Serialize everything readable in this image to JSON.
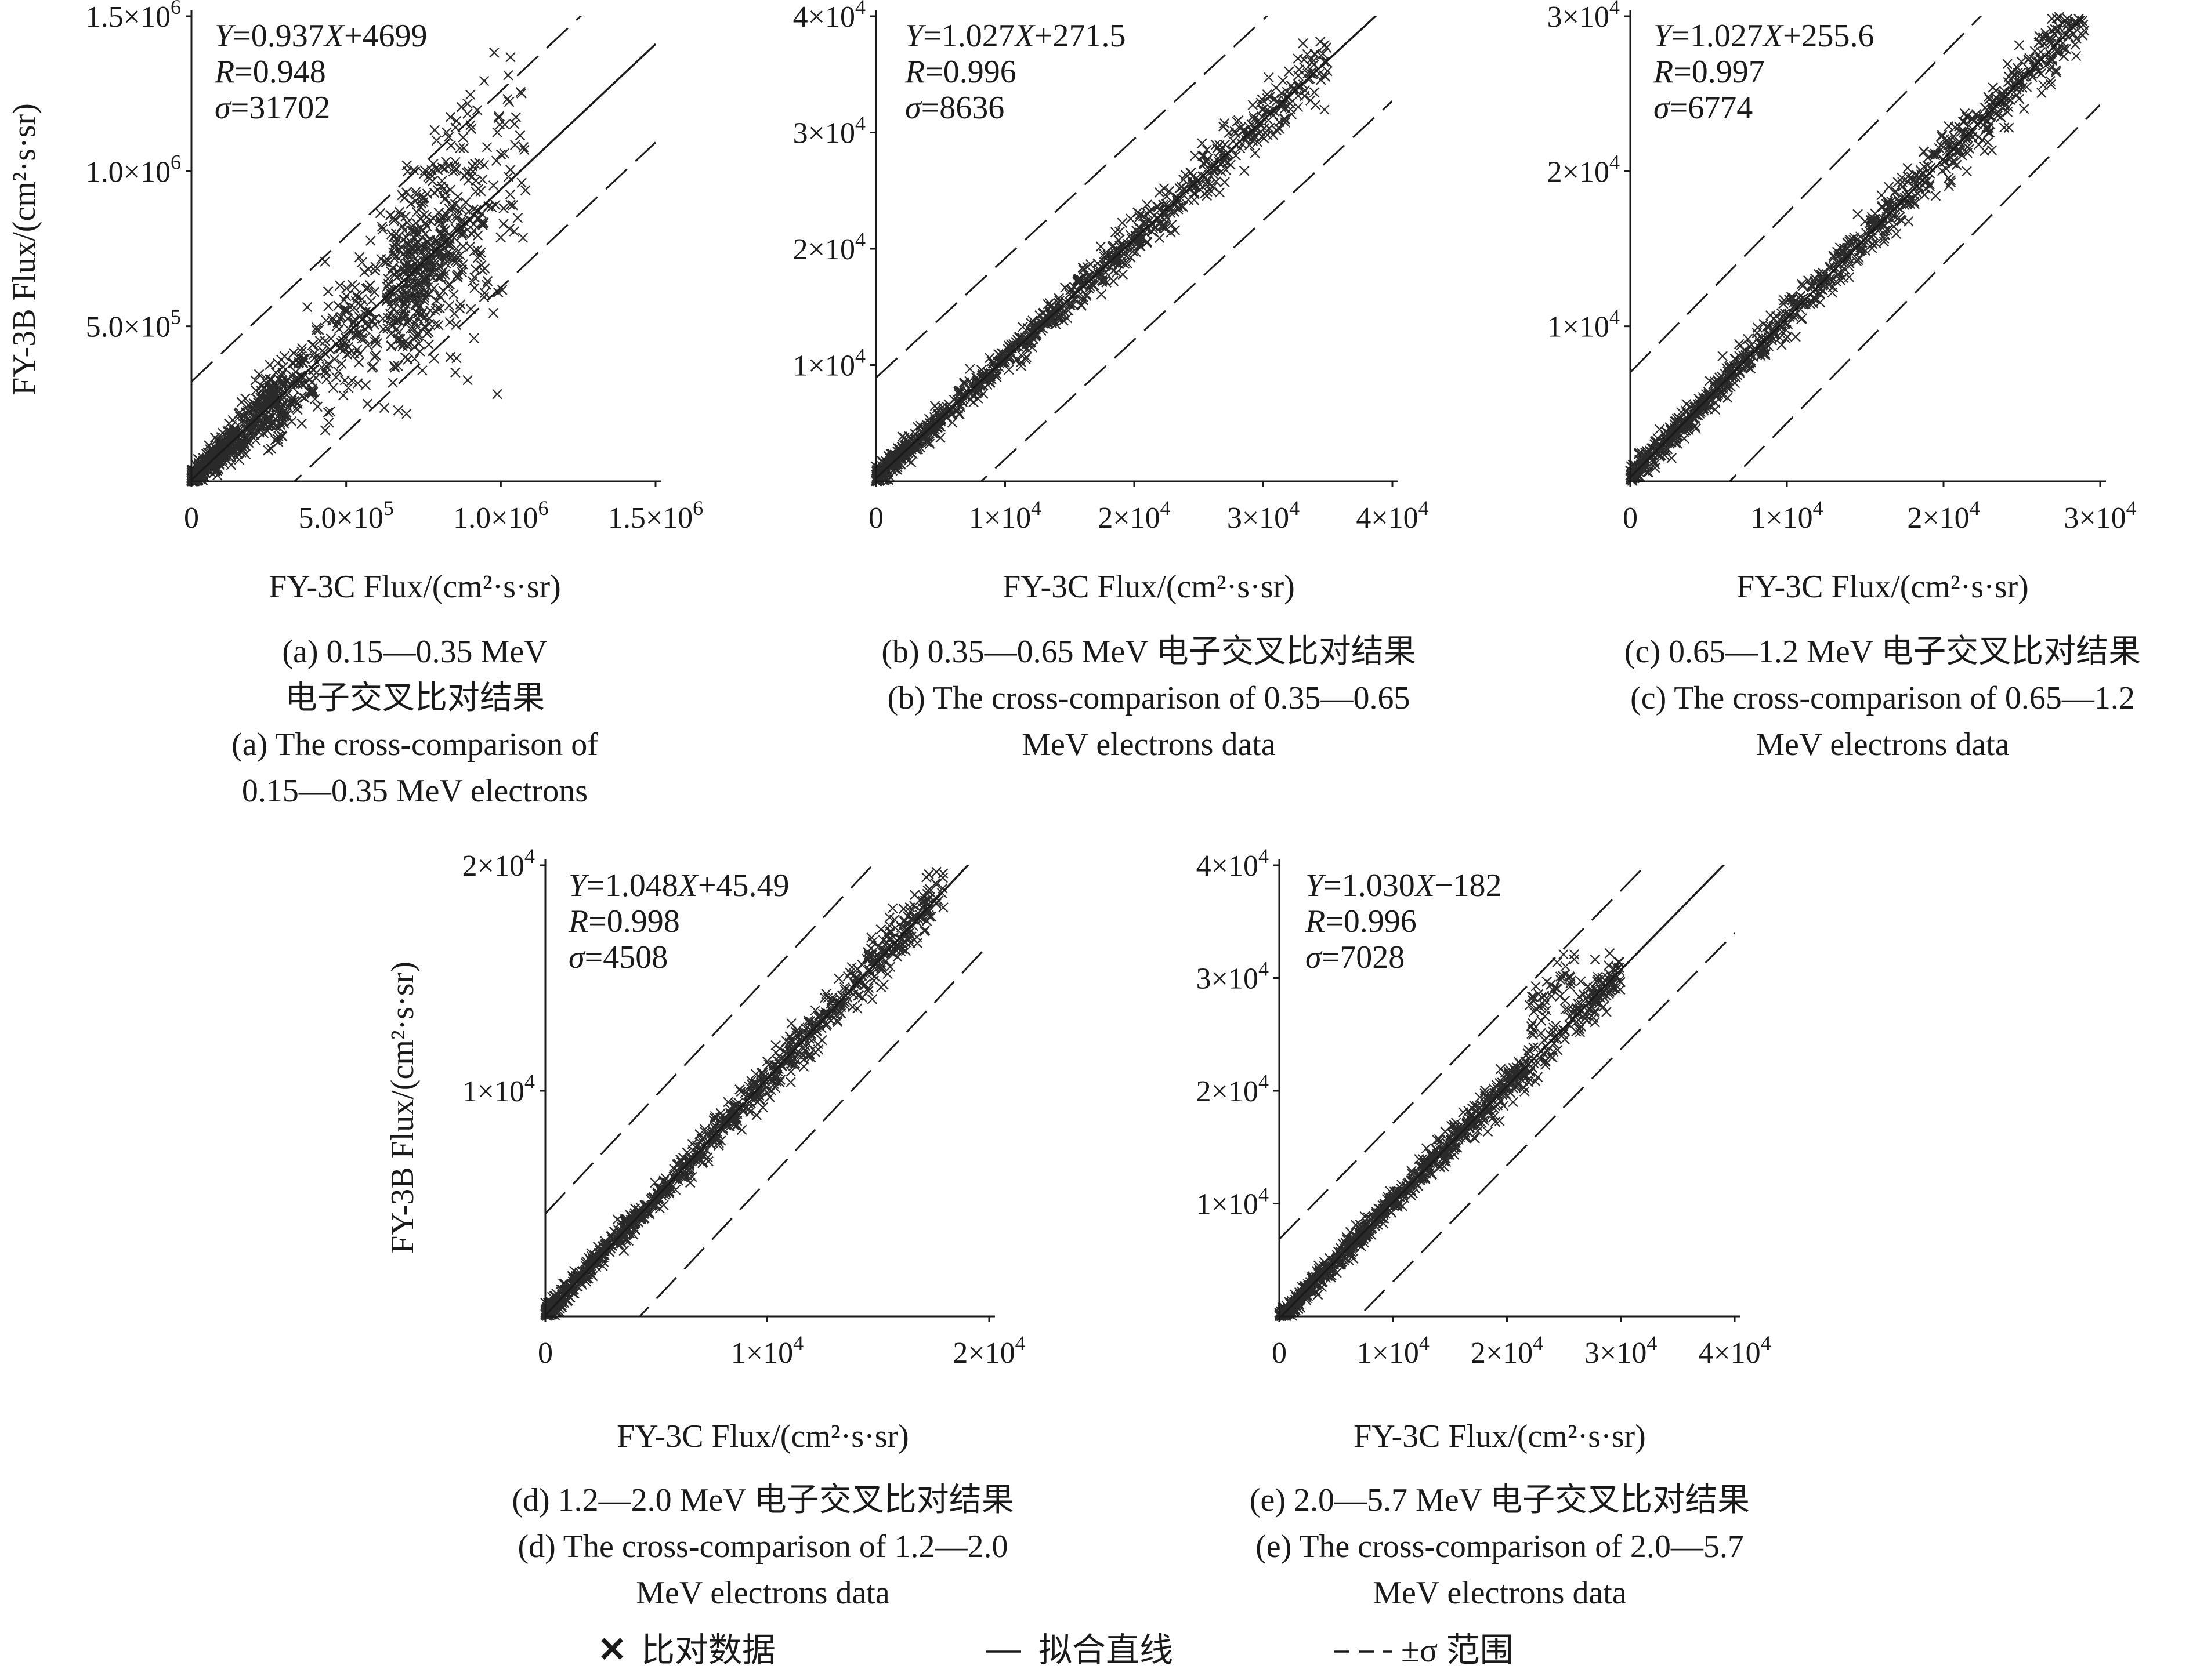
{
  "chart_data": [
    {
      "panel": "a",
      "type": "scatter",
      "xlabel": "FY-3C Flux/(cm²·s·sr)",
      "ylabel": "FY-3B Flux/(cm²·s·sr)",
      "xlim": [
        0,
        1500000
      ],
      "ylim": [
        0,
        1500000
      ],
      "x_ticks": [
        {
          "value": 0,
          "mant": "0",
          "exp": ""
        },
        {
          "value": 500000,
          "mant": "5.0×10",
          "exp": "5"
        },
        {
          "value": 1000000,
          "mant": "1.0×10",
          "exp": "6"
        },
        {
          "value": 1500000,
          "mant": "1.5×10",
          "exp": "6"
        }
      ],
      "y_ticks": [
        {
          "value": 500000,
          "mant": "5.0×10",
          "exp": "5"
        },
        {
          "value": 1000000,
          "mant": "1.0×10",
          "exp": "6"
        },
        {
          "value": 1500000,
          "mant": "1.5×10",
          "exp": "6"
        }
      ],
      "fit": {
        "slope": 0.937,
        "intercept": 4699
      },
      "sigma": 31702,
      "stats": {
        "eq_sym": "Y",
        "eq_mid": "=0.937",
        "eq_x": "X",
        "eq_tail": "+4699",
        "r_sym": "R",
        "r_val": "=0.948",
        "s_sym": "σ",
        "s_val": "=31702"
      },
      "caption_lines": [
        "(a) 0.15—0.35 MeV",
        "电子交叉比对结果",
        "(a) The cross-comparison of",
        "0.15—0.35 MeV electrons"
      ],
      "points_sample": [
        [
          20000,
          25000
        ],
        [
          80000,
          150000
        ],
        [
          150000,
          200000
        ],
        [
          250000,
          450000
        ],
        [
          300000,
          350000
        ],
        [
          400000,
          600000
        ],
        [
          500000,
          550000
        ],
        [
          600000,
          700000
        ],
        [
          700000,
          750000
        ],
        [
          800000,
          850000
        ],
        [
          900000,
          900000
        ],
        [
          1000000,
          950000
        ]
      ]
    },
    {
      "panel": "b",
      "type": "scatter",
      "xlabel": "FY-3C Flux/(cm²·s·sr)",
      "ylabel": "",
      "xlim": [
        0,
        40000
      ],
      "ylim": [
        0,
        40000
      ],
      "x_ticks": [
        {
          "value": 0,
          "mant": "0",
          "exp": ""
        },
        {
          "value": 10000,
          "mant": "1×10",
          "exp": "4"
        },
        {
          "value": 20000,
          "mant": "2×10",
          "exp": "4"
        },
        {
          "value": 30000,
          "mant": "3×10",
          "exp": "4"
        },
        {
          "value": 40000,
          "mant": "4×10",
          "exp": "4"
        }
      ],
      "y_ticks": [
        {
          "value": 10000,
          "mant": "1×10",
          "exp": "4"
        },
        {
          "value": 20000,
          "mant": "2×10",
          "exp": "4"
        },
        {
          "value": 30000,
          "mant": "3×10",
          "exp": "4"
        },
        {
          "value": 40000,
          "mant": "4×10",
          "exp": "4"
        }
      ],
      "fit": {
        "slope": 1.027,
        "intercept": 271.5
      },
      "sigma": 8636,
      "stats": {
        "eq_sym": "Y",
        "eq_mid": "=1.027",
        "eq_x": "X",
        "eq_tail": "+271.5",
        "r_sym": "R",
        "r_val": "=0.996",
        "s_sym": "σ",
        "s_val": "=8636"
      },
      "caption_lines": [
        "(b) 0.35—0.65 MeV 电子交叉比对结果",
        "(b) The cross-comparison of 0.35—0.65",
        "MeV electrons data"
      ],
      "points_sample": [
        [
          500,
          700
        ],
        [
          5000,
          5300
        ],
        [
          10000,
          10500
        ],
        [
          15000,
          15600
        ],
        [
          20000,
          20500
        ],
        [
          25000,
          26000
        ],
        [
          30000,
          31000
        ],
        [
          35000,
          35500
        ]
      ]
    },
    {
      "panel": "c",
      "type": "scatter",
      "xlabel": "FY-3C Flux/(cm²·s·sr)",
      "ylabel": "",
      "xlim": [
        0,
        30000
      ],
      "ylim": [
        0,
        30000
      ],
      "x_ticks": [
        {
          "value": 0,
          "mant": "0",
          "exp": ""
        },
        {
          "value": 10000,
          "mant": "1×10",
          "exp": "4"
        },
        {
          "value": 20000,
          "mant": "2×10",
          "exp": "4"
        },
        {
          "value": 30000,
          "mant": "3×10",
          "exp": "4"
        }
      ],
      "y_ticks": [
        {
          "value": 10000,
          "mant": "1×10",
          "exp": "4"
        },
        {
          "value": 20000,
          "mant": "2×10",
          "exp": "4"
        },
        {
          "value": 30000,
          "mant": "3×10",
          "exp": "4"
        }
      ],
      "fit": {
        "slope": 1.027,
        "intercept": 255.6
      },
      "sigma": 6774,
      "stats": {
        "eq_sym": "Y",
        "eq_mid": "=1.027",
        "eq_x": "X",
        "eq_tail": "+255.6",
        "r_sym": "R",
        "r_val": "=0.997",
        "s_sym": "σ",
        "s_val": "=6774"
      },
      "caption_lines": [
        "(c) 0.65—1.2 MeV 电子交叉比对结果",
        "(c) The cross-comparison of 0.65—1.2",
        "MeV electrons data"
      ],
      "points_sample": [
        [
          500,
          600
        ],
        [
          5000,
          5400
        ],
        [
          10000,
          10500
        ],
        [
          15000,
          15700
        ],
        [
          20000,
          20800
        ],
        [
          25000,
          26000
        ],
        [
          29000,
          29500
        ]
      ]
    },
    {
      "panel": "d",
      "type": "scatter",
      "xlabel": "FY-3C Flux/(cm²·s·sr)",
      "ylabel": "FY-3B Flux/(cm²·s·sr)",
      "xlim": [
        0,
        20000
      ],
      "ylim": [
        0,
        20000
      ],
      "x_ticks": [
        {
          "value": 0,
          "mant": "0",
          "exp": ""
        },
        {
          "value": 10000,
          "mant": "1×10",
          "exp": "4"
        },
        {
          "value": 20000,
          "mant": "2×10",
          "exp": "4"
        }
      ],
      "y_ticks": [
        {
          "value": 10000,
          "mant": "1×10",
          "exp": "4"
        },
        {
          "value": 20000,
          "mant": "2×10",
          "exp": "4"
        }
      ],
      "fit": {
        "slope": 1.048,
        "intercept": 45.49
      },
      "sigma": 4508,
      "stats": {
        "eq_sym": "Y",
        "eq_mid": "=1.048",
        "eq_x": "X",
        "eq_tail": "+45.49",
        "r_sym": "R",
        "r_val": "=0.998",
        "s_sym": "σ",
        "s_val": "=4508"
      },
      "caption_lines": [
        "(d) 1.2—2.0 MeV 电子交叉比对结果",
        "(d) The cross-comparison of 1.2—2.0",
        "MeV electrons data"
      ],
      "points_sample": [
        [
          300,
          400
        ],
        [
          3000,
          3200
        ],
        [
          6000,
          6300
        ],
        [
          9000,
          9500
        ],
        [
          12000,
          12600
        ],
        [
          15000,
          15800
        ],
        [
          18000,
          18800
        ]
      ]
    },
    {
      "panel": "e",
      "type": "scatter",
      "xlabel": "FY-3C Flux/(cm²·s·sr)",
      "ylabel": "",
      "xlim": [
        0,
        40000
      ],
      "ylim": [
        0,
        40000
      ],
      "x_ticks": [
        {
          "value": 0,
          "mant": "0",
          "exp": ""
        },
        {
          "value": 10000,
          "mant": "1×10",
          "exp": "4"
        },
        {
          "value": 20000,
          "mant": "2×10",
          "exp": "4"
        },
        {
          "value": 30000,
          "mant": "3×10",
          "exp": "4"
        },
        {
          "value": 40000,
          "mant": "4×10",
          "exp": "4"
        }
      ],
      "y_ticks": [
        {
          "value": 10000,
          "mant": "1×10",
          "exp": "4"
        },
        {
          "value": 20000,
          "mant": "2×10",
          "exp": "4"
        },
        {
          "value": 30000,
          "mant": "3×10",
          "exp": "4"
        },
        {
          "value": 40000,
          "mant": "4×10",
          "exp": "4"
        }
      ],
      "fit": {
        "slope": 1.03,
        "intercept": -182
      },
      "sigma": 7028,
      "stats": {
        "eq_sym": "Y",
        "eq_mid": "=1.030",
        "eq_x": "X",
        "eq_tail": "−182",
        "r_sym": "R",
        "r_val": "=0.996",
        "s_sym": "σ",
        "s_val": "=7028"
      },
      "caption_lines": [
        "(e) 2.0—5.7 MeV 电子交叉比对结果",
        "(e) The cross-comparison of 2.0—5.7",
        "MeV electrons data"
      ],
      "points_sample": [
        [
          500,
          400
        ],
        [
          5000,
          5000
        ],
        [
          10000,
          10200
        ],
        [
          15000,
          15500
        ],
        [
          20000,
          21000
        ],
        [
          24000,
          28500
        ],
        [
          28000,
          29000
        ],
        [
          30000,
          31000
        ]
      ]
    }
  ],
  "legend": {
    "marker_glyph": "✕",
    "points_label": "比对数据",
    "fit_label": "拟合直线",
    "sigma_label": "±σ 范围"
  }
}
